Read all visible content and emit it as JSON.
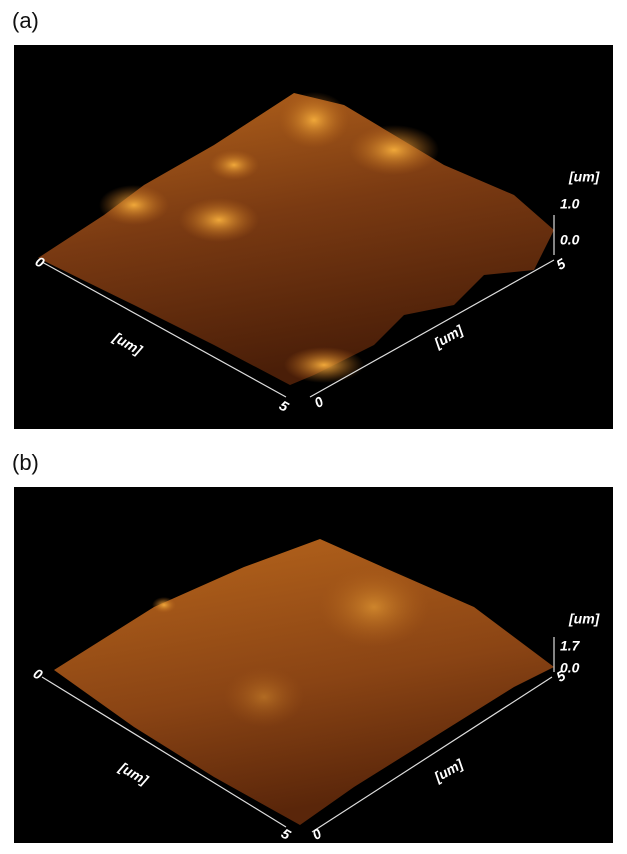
{
  "panels": [
    {
      "label": "(a)",
      "z_unit": "[um]",
      "z_max": "1.0",
      "z_min": "0.0",
      "x_start": "0",
      "x_end": "5",
      "x_unit": "[um]",
      "y_start": "0",
      "y_end": "5",
      "y_unit": "[um]"
    },
    {
      "label": "(b)",
      "z_unit": "[um]",
      "z_max": "1.7",
      "z_min": "0.0",
      "x_start": "0",
      "x_end": "5",
      "x_unit": "[um]",
      "y_start": "0",
      "y_end": "5",
      "y_unit": "[um]"
    }
  ]
}
